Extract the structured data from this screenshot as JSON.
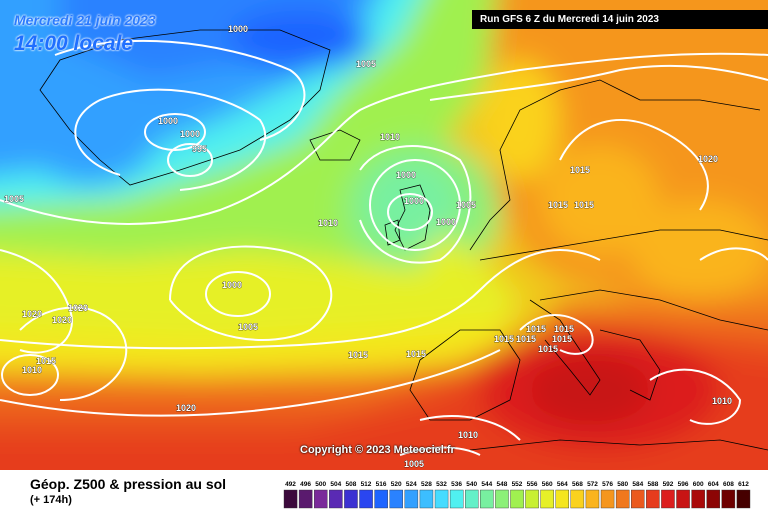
{
  "header": {
    "date": "Mercredi 21 juin 2023",
    "local_time": "14:00 locale",
    "run": "Run GFS 6 Z du Mercredi 14 juin 2023"
  },
  "copyright": "Copyright © 2023 Meteociel.fr",
  "legend": {
    "title": "Géop. Z500 & pression au sol",
    "subtitle": "(+ 174h)",
    "values": [
      "492",
      "496",
      "500",
      "504",
      "508",
      "512",
      "516",
      "520",
      "524",
      "528",
      "532",
      "536",
      "540",
      "544",
      "548",
      "552",
      "556",
      "560",
      "564",
      "568",
      "572",
      "576",
      "580",
      "584",
      "588",
      "592",
      "596",
      "600",
      "604",
      "608",
      "612"
    ],
    "colors": [
      "#3c0a3c",
      "#5a1a6e",
      "#7a2a9a",
      "#5a2ab4",
      "#3c32d2",
      "#2a46f0",
      "#1e64ff",
      "#2a82ff",
      "#32a0ff",
      "#3cbeff",
      "#46dcff",
      "#50f0f0",
      "#64f0c8",
      "#78f0a0",
      "#8cf078",
      "#a0f050",
      "#c8f032",
      "#e6f028",
      "#f5e61e",
      "#fad21e",
      "#fab41e",
      "#f5961e",
      "#f0781e",
      "#eb5a1e",
      "#e63c1e",
      "#dc1e1e",
      "#c81414",
      "#aa0a0a",
      "#8c0505",
      "#6e0000",
      "#460000"
    ]
  },
  "isobars": [
    {
      "text": "1000"
    },
    {
      "text": "1005"
    },
    {
      "text": "1000"
    },
    {
      "text": "1000"
    },
    {
      "text": "995"
    },
    {
      "text": "1010"
    },
    {
      "text": "1005"
    },
    {
      "text": "1010"
    },
    {
      "text": "1000"
    },
    {
      "text": "1000"
    },
    {
      "text": "1000"
    },
    {
      "text": "1005"
    },
    {
      "text": "1000"
    },
    {
      "text": "1005"
    },
    {
      "text": "1020"
    },
    {
      "text": "1020"
    },
    {
      "text": "1020"
    },
    {
      "text": "1015"
    },
    {
      "text": "1010"
    },
    {
      "text": "1015"
    },
    {
      "text": "1015"
    },
    {
      "text": "1020"
    },
    {
      "text": "1015"
    },
    {
      "text": "1015"
    },
    {
      "text": "1015"
    },
    {
      "text": "1020"
    },
    {
      "text": "1015"
    },
    {
      "text": "1015"
    },
    {
      "text": "1015"
    },
    {
      "text": "1015"
    },
    {
      "text": "1015"
    },
    {
      "text": "1015"
    },
    {
      "text": "1010"
    },
    {
      "text": "1010"
    },
    {
      "text": "1005"
    }
  ]
}
